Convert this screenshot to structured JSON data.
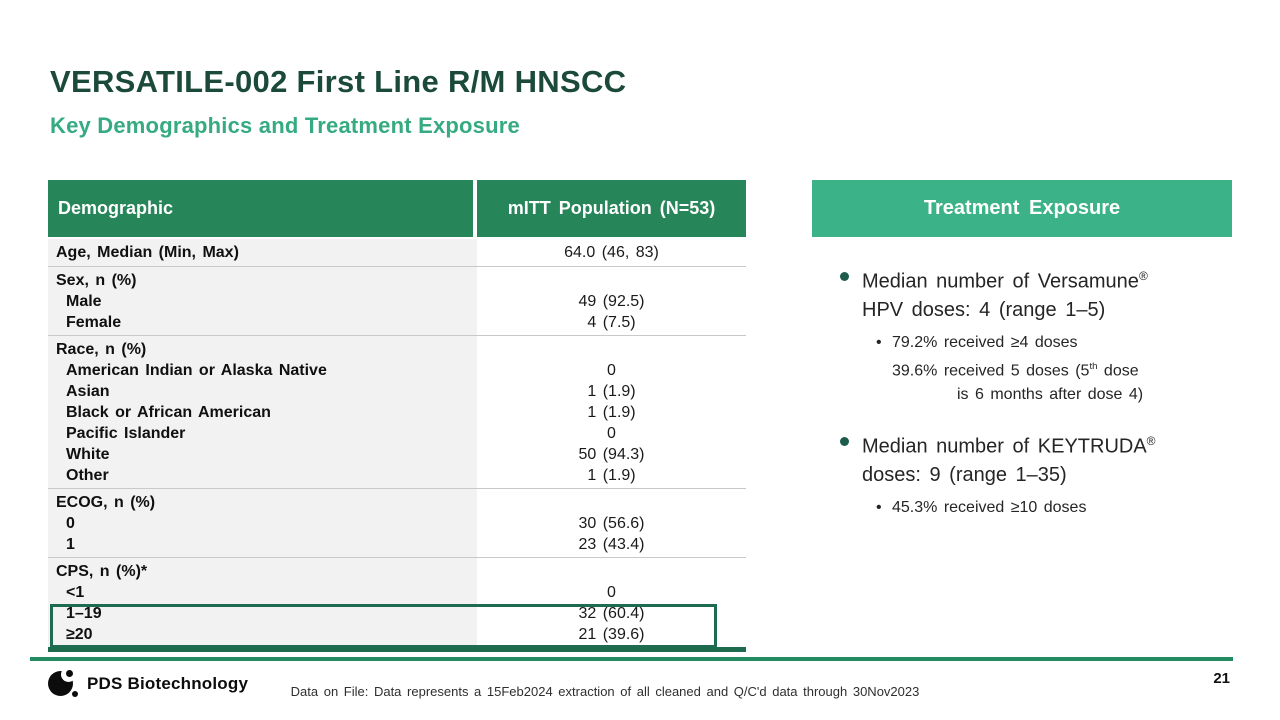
{
  "slide": {
    "title": "VERSATILE-002 First Line R/M HNSCC",
    "subtitle": "Key Demographics and Treatment Exposure",
    "page_number": "21"
  },
  "table": {
    "col_headers": [
      "Demographic",
      "mITT Population (N=53)"
    ],
    "groups": [
      {
        "label": "Age, Median (Min, Max)",
        "value": "64.0 (46, 83)"
      },
      {
        "label": "Sex, n (%)",
        "items": [
          {
            "label": "Male",
            "value": "49 (92.5)"
          },
          {
            "label": "Female",
            "value": "4 (7.5)"
          }
        ]
      },
      {
        "label": "Race, n (%)",
        "items": [
          {
            "label": "American Indian or Alaska Native",
            "value": "0"
          },
          {
            "label": "Asian",
            "value": "1 (1.9)"
          },
          {
            "label": "Black or African American",
            "value": "1 (1.9)"
          },
          {
            "label": "Pacific Islander",
            "value": "0"
          },
          {
            "label": "White",
            "value": "50 (94.3)"
          },
          {
            "label": "Other",
            "value": "1 (1.9)"
          }
        ]
      },
      {
        "label": "ECOG, n (%)",
        "items": [
          {
            "label": "0",
            "value": "30 (56.6)"
          },
          {
            "label": "1",
            "value": "23 (43.4)"
          }
        ]
      },
      {
        "label": "CPS, n (%)*",
        "items": [
          {
            "label": "<1",
            "value": "0"
          },
          {
            "label": "1–19",
            "value": "32 (60.4)"
          },
          {
            "label": "≥20",
            "value": "21 (39.6)"
          }
        ]
      }
    ]
  },
  "panel": {
    "title": "Treatment Exposure",
    "bullet1": {
      "line1_pre": "Median number of Versamune",
      "line1_sup": "®",
      "line2": "HPV doses: 4 (range 1–5)",
      "sub1": "79.2% received ≥4 doses",
      "sub2_pre": "39.6% received 5 doses (5",
      "sub2_sup": "th",
      "sub2_post": " dose",
      "sub3": "is 6 months after dose 4)"
    },
    "bullet2": {
      "line1_pre": "Median number of KEYTRUDA",
      "line1_sup": "®",
      "line2": "doses: 9 (range 1–35)",
      "sub1": "45.3% received ≥10 doses"
    }
  },
  "footer": {
    "brand": "PDS Biotechnology",
    "note": "Data on File: Data represents a 15Feb2024 extraction of all cleaned and Q/C'd data through 30Nov2023"
  },
  "colors": {
    "title_green": "#1b4a3b",
    "subtitle_green": "#36ab81",
    "table_header_green": "#27855a",
    "panel_green": "#3bb287",
    "accent_dark_green": "#1d6a4f",
    "footer_line_green": "#238b62",
    "highlight_border_green": "#1f6b52",
    "row_gray": "#f2f2f2"
  }
}
